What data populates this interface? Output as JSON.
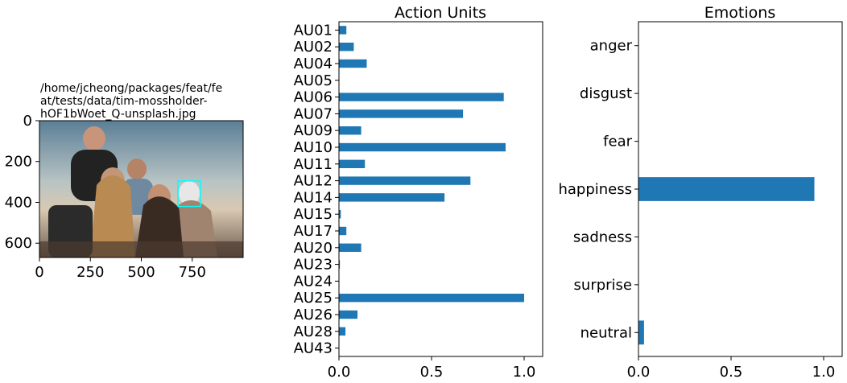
{
  "chart_data": [
    {
      "type": "image",
      "title": "/home/jcheong/packages/feat/feat/tests/data/tim-mossholder-hOF1bWoet_Q-unsplash.jpg",
      "title_lines": [
        "/home/jcheong/packages/feat/fe",
        "at/tests/data/tim-mossholder-",
        "hOF1bWoet_Q-unsplash.jpg"
      ],
      "xlim": [
        0,
        1000
      ],
      "ylim": [
        670,
        0
      ],
      "x_ticks": [
        0,
        250,
        500,
        750
      ],
      "y_ticks": [
        0,
        200,
        400,
        600
      ],
      "face_box": {
        "x0": 680,
        "y0": 295,
        "x1": 790,
        "y1": 420,
        "color": "#00ffff"
      }
    },
    {
      "type": "bar",
      "orientation": "horizontal",
      "title": "Action Units",
      "categories": [
        "AU01",
        "AU02",
        "AU04",
        "AU05",
        "AU06",
        "AU07",
        "AU09",
        "AU10",
        "AU11",
        "AU12",
        "AU14",
        "AU15",
        "AU17",
        "AU20",
        "AU23",
        "AU24",
        "AU25",
        "AU26",
        "AU28",
        "AU43"
      ],
      "values": [
        0.04,
        0.08,
        0.15,
        0.0,
        0.89,
        0.67,
        0.12,
        0.9,
        0.14,
        0.71,
        0.57,
        0.01,
        0.04,
        0.12,
        0.005,
        0.0,
        1.0,
        0.1,
        0.035,
        0.0
      ],
      "xlim": [
        0,
        1.1
      ],
      "x_ticks": [
        "0.0",
        "0.5",
        "1.0"
      ],
      "color": "#1f77b4"
    },
    {
      "type": "bar",
      "orientation": "horizontal",
      "title": "Emotions",
      "categories": [
        "anger",
        "disgust",
        "fear",
        "happiness",
        "sadness",
        "surprise",
        "neutral"
      ],
      "values": [
        0.0,
        0.0,
        0.0,
        0.95,
        0.0,
        0.0,
        0.03
      ],
      "xlim": [
        0,
        1.1
      ],
      "x_ticks": [
        "0.0",
        "0.5",
        "1.0"
      ],
      "color": "#1f77b4"
    }
  ]
}
